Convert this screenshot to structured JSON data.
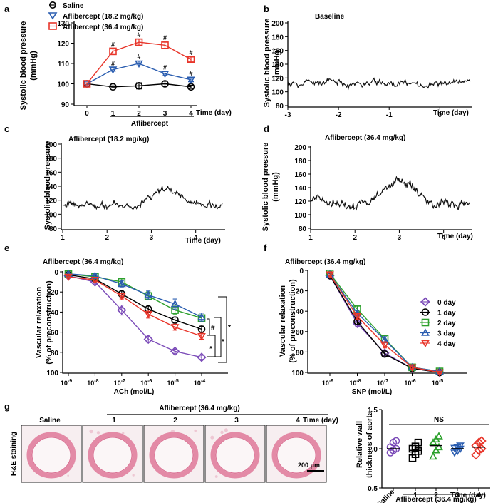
{
  "colors": {
    "saline": "#000000",
    "low": "#2a5db0",
    "high": "#e8362b",
    "d0": "#7b4bb8",
    "d1": "#000000",
    "d2": "#2ca02c",
    "d3": "#2a5db0",
    "d4": "#e8362b"
  },
  "panels": {
    "a": "a",
    "b": "b",
    "c": "c",
    "d": "d",
    "e": "e",
    "f": "f",
    "g": "g"
  },
  "chart_data": [
    {
      "panel": "a",
      "type": "line",
      "ylabel": "Systolic blood pressure (mmHg)",
      "ylabel_line1": "Systolic blood pressure",
      "ylabel_line2": "(mmHg)",
      "x": [
        0,
        1,
        2,
        3,
        4
      ],
      "xticks": [
        "0",
        "1",
        "2",
        "3",
        "4"
      ],
      "xlabel": "Time (day)",
      "group_label": "Aflibercept",
      "ylim": [
        90,
        130
      ],
      "yticks": [
        "90",
        "100",
        "110",
        "120",
        "130"
      ],
      "sig_marker": "#",
      "legend": [
        "Saline",
        "Aflibercept (18.2 mg/kg)",
        "Aflibercept (36.4 mg/kg)"
      ],
      "series": [
        {
          "name": "Saline",
          "values": [
            100,
            98.5,
            99,
            100,
            98.5
          ],
          "err": [
            0.5,
            0.5,
            1.5,
            1.2,
            0.8
          ]
        },
        {
          "name": "Aflibercept (18.2 mg/kg)",
          "values": [
            100,
            107,
            110,
            105,
            102
          ],
          "err": [
            0.5,
            0.8,
            1.2,
            1,
            1
          ]
        },
        {
          "name": "Aflibercept (36.4 mg/kg)",
          "values": [
            100,
            116,
            120.5,
            119,
            112
          ],
          "err": [
            0.5,
            1.2,
            1.5,
            1.5,
            1.2
          ]
        }
      ]
    },
    {
      "panel": "b",
      "type": "line",
      "title": "Baseline",
      "ylabel": "Systolic blood pressure (mmHg)",
      "ylabel_line1": "Systolic blood pressure",
      "ylabel_line2": "(mmHg)",
      "xlim": [
        -3,
        0.6
      ],
      "xticks": [
        "-3",
        "-2",
        "-1",
        "0"
      ],
      "xlabel": "Time (day)",
      "ylim": [
        80,
        200
      ],
      "yticks": [
        "80",
        "100",
        "120",
        "140",
        "160",
        "180",
        "200"
      ],
      "trace": {
        "base": 112,
        "amp": 10,
        "points": 200,
        "seed": 11
      }
    },
    {
      "panel": "c",
      "type": "line",
      "title": "Aflibercept (18.2 mg/kg)",
      "ylabel": "Systolic blood pressure",
      "xlim": [
        1,
        4.6
      ],
      "xticks": [
        "1",
        "2",
        "3",
        "4"
      ],
      "xlabel": "Time (day)",
      "ylim": [
        80,
        200
      ],
      "yticks": [
        "80",
        "100",
        "120",
        "140",
        "160",
        "180",
        "200"
      ],
      "trace": {
        "base": 112,
        "amp": 10,
        "bump": 20,
        "peak": 3.3,
        "points": 200,
        "seed": 23
      }
    },
    {
      "panel": "d",
      "type": "line",
      "title": "Aflibercept (36.4 mg/kg)",
      "ylabel": "Systolic blood pressure (mmHg)",
      "ylabel_line1": "Systolic blood pressure",
      "ylabel_line2": "(mmHg)",
      "xlim": [
        1,
        4.6
      ],
      "xticks": [
        "1",
        "2",
        "3",
        "4"
      ],
      "xlabel": "Time (day)",
      "ylim": [
        80,
        200
      ],
      "yticks": [
        "80",
        "100",
        "120",
        "140",
        "160",
        "180",
        "200"
      ],
      "trace": {
        "base": 115,
        "amp": 14,
        "bump": 32,
        "peak": 3.0,
        "points": 200,
        "seed": 37
      }
    },
    {
      "panel": "e",
      "type": "line",
      "title": "Aflibercept (36.4 mg/kg)",
      "ylabel": "Vascular relaxation (% of preconstruction)",
      "ylabel_line1": "Vascular relaxation",
      "ylabel_line2": "(% of preconstruction)",
      "xlabel": "ACh (mol/L)",
      "xticks_base": "10",
      "xticks_exp": [
        "-9",
        "-8",
        "-7",
        "-6",
        "-5",
        "-4"
      ],
      "ylim": [
        0,
        100
      ],
      "yticks": [
        "0",
        "20",
        "40",
        "60",
        "80",
        "100"
      ],
      "y_inverted": true,
      "sig_markers": [
        "#",
        "*",
        "*",
        "*"
      ],
      "series": [
        {
          "name": "0 day",
          "values": [
            4,
            10,
            38,
            67,
            79,
            85
          ],
          "err": [
            1,
            2,
            5,
            3,
            2,
            2
          ]
        },
        {
          "name": "1 day",
          "values": [
            3,
            7,
            22,
            37,
            48,
            57
          ],
          "err": [
            1,
            2,
            3,
            3,
            3,
            3
          ]
        },
        {
          "name": "2 day",
          "values": [
            2,
            5,
            10,
            24,
            38,
            46
          ],
          "err": [
            1,
            2,
            3,
            4,
            4,
            3
          ]
        },
        {
          "name": "3 day",
          "values": [
            2,
            4,
            12,
            23,
            32,
            45
          ],
          "err": [
            1,
            2,
            3,
            4,
            5,
            4
          ]
        },
        {
          "name": "4 day",
          "values": [
            5,
            8,
            24,
            42,
            55,
            64
          ],
          "err": [
            1,
            2,
            3,
            4,
            3,
            3
          ]
        }
      ]
    },
    {
      "panel": "f",
      "type": "line",
      "title": "Aflibercept (36.4 mg/kg)",
      "ylabel": "Vascular relaxation (% of preconstruction)",
      "ylabel_line1": "Vascular relaxation",
      "ylabel_line2": "(% of preconstruction)",
      "xlabel": "SNP (mol/L)",
      "xticks_base": "10",
      "xticks_exp": [
        "-9",
        "-8",
        "-7",
        "-6",
        "-5"
      ],
      "ylim": [
        0,
        100
      ],
      "yticks": [
        "0",
        "20",
        "40",
        "60",
        "80",
        "100"
      ],
      "y_inverted": true,
      "legend": [
        "0 day",
        "1 day",
        "2 day",
        "3 day",
        "4 day"
      ],
      "series": [
        {
          "name": "0 day",
          "values": [
            5,
            52,
            81,
            96,
            100
          ],
          "err": [
            2,
            3,
            2,
            1,
            1
          ]
        },
        {
          "name": "1 day",
          "values": [
            5,
            50,
            82,
            96,
            100
          ],
          "err": [
            2,
            3,
            2,
            1,
            1
          ]
        },
        {
          "name": "2 day",
          "values": [
            3,
            38,
            67,
            95,
            99
          ],
          "err": [
            2,
            3,
            3,
            2,
            1
          ]
        },
        {
          "name": "3 day",
          "values": [
            4,
            42,
            68,
            95,
            99
          ],
          "err": [
            2,
            3,
            3,
            2,
            1
          ]
        },
        {
          "name": "4 day",
          "values": [
            4,
            45,
            73,
            95,
            100
          ],
          "err": [
            2,
            3,
            3,
            2,
            1
          ]
        }
      ]
    },
    {
      "panel": "g",
      "type": "scatter",
      "ylabel": "Relative wall thickness of aorta",
      "ylabel_line1": "Relative wall",
      "ylabel_line2": "thickness of aorta",
      "ylim": [
        0.5,
        1.5
      ],
      "yticks": [
        "0.5",
        "1.0",
        "1.5"
      ],
      "categories": [
        "Saline",
        "1",
        "2",
        "3",
        "4"
      ],
      "xlabel": "Time (day)",
      "group_label": "Aflibercept (36.4 mg/kg)",
      "ns_label": "NS",
      "groups": [
        {
          "name": "Saline",
          "mean": 1.0,
          "points": [
            0.95,
            0.98,
            1.0,
            1.02,
            1.08,
            1.1
          ]
        },
        {
          "name": "1",
          "mean": 0.98,
          "points": [
            0.88,
            0.93,
            0.97,
            1.0,
            1.03,
            1.08
          ]
        },
        {
          "name": "2",
          "mean": 1.04,
          "points": [
            0.9,
            0.98,
            1.02,
            1.08,
            1.12,
            1.16
          ]
        },
        {
          "name": "3",
          "mean": 1.0,
          "points": [
            0.95,
            0.97,
            1.0,
            1.01,
            1.02,
            1.04
          ]
        },
        {
          "name": "4",
          "mean": 1.02,
          "points": [
            0.92,
            0.98,
            1.0,
            1.04,
            1.08,
            1.1
          ]
        }
      ]
    }
  ],
  "histology": {
    "row_label": "H&E staining",
    "header": "Aflibercept (36.4 mg/kg)",
    "time_label": "Time (day)",
    "labels": [
      "Saline",
      "1",
      "2",
      "3",
      "4"
    ],
    "scale_bar": "200 μm"
  }
}
